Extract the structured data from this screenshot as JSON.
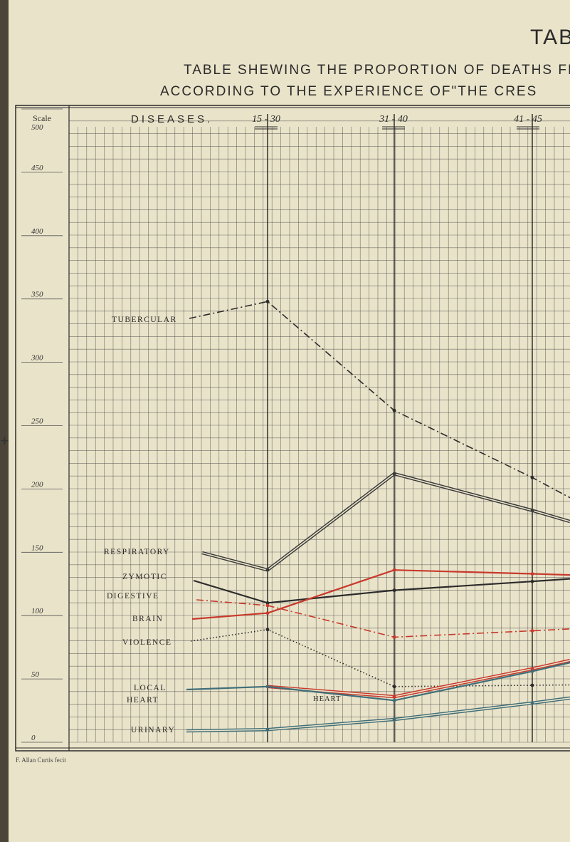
{
  "header": {
    "corner": "TAB",
    "line1": "TABLE SHEWING THE PROPORTION OF DEATHS FI",
    "line2": "ACCORDING TO THE EXPERIENCE OF\"THE CRES"
  },
  "credit": "F. Allan Curtis fecit",
  "chart_data": {
    "type": "line",
    "scale_label": "Scale",
    "diseases_label": "DISEASES.",
    "y_ticks": [
      "500",
      "450",
      "400",
      "350",
      "300",
      "250",
      "200",
      "150",
      "100",
      "50",
      "0"
    ],
    "ylim": [
      0,
      500
    ],
    "categories": [
      "15 - 30",
      "31 - 40",
      "41 - 45"
    ],
    "grid": true,
    "series": [
      {
        "name": "TUBERCULAR",
        "color": "#2b2b2b",
        "style": "dashdot",
        "values": [
          348,
          262,
          209
        ]
      },
      {
        "name": "RESPIRATORY",
        "color": "#3a3a3a",
        "style": "double",
        "values": [
          136,
          212,
          183
        ]
      },
      {
        "name": "ZYMOTIC",
        "color": "#2b2b2b",
        "style": "solid",
        "values": [
          110,
          120,
          127
        ]
      },
      {
        "name": "DIGESTIVE",
        "color": "#c8392c",
        "style": "dashdot",
        "values": [
          108,
          83,
          88
        ]
      },
      {
        "name": "BRAIN",
        "color": "#c8392c",
        "style": "solid",
        "values": [
          102,
          136,
          133
        ]
      },
      {
        "name": "VIOLENCE",
        "color": "#2b2b2b",
        "style": "dotted",
        "values": [
          89,
          44,
          45
        ]
      },
      {
        "name": "LOCAL",
        "color": "#c8392c",
        "style": "double",
        "values": [
          44,
          36,
          58
        ]
      },
      {
        "name": "HEART",
        "color": "#3f6e78",
        "style": "solid",
        "values": [
          44,
          33,
          56
        ]
      },
      {
        "name": "URINARY",
        "color": "#3f6e78",
        "style": "double",
        "values": [
          10,
          18,
          31
        ]
      }
    ],
    "annotations": [
      "HEART"
    ]
  }
}
